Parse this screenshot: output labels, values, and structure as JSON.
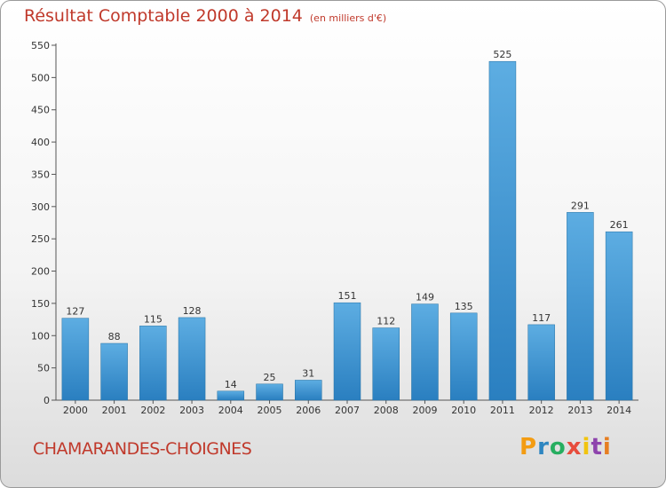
{
  "title": "Résultat Comptable 2000 à 2014",
  "unit": "(en milliers d'€)",
  "commune": "CHAMARANDES-CHOIGNES",
  "logo": {
    "text": "Proxiti",
    "letters": [
      "P",
      "r",
      "o",
      "x",
      "i",
      "t",
      "i"
    ],
    "colors": [
      "#f39c12",
      "#2e86c1",
      "#27ae60",
      "#e74c3c",
      "#f1c40f",
      "#8e44ad",
      "#e67e22"
    ]
  },
  "colors": {
    "title": "#c0392b",
    "bar_light": "#5dade2",
    "bar_dark": "#2a7fc0"
  },
  "chart_data": {
    "type": "bar",
    "categories": [
      "2000",
      "2001",
      "2002",
      "2003",
      "2004",
      "2005",
      "2006",
      "2007",
      "2008",
      "2009",
      "2010",
      "2011",
      "2012",
      "2013",
      "2014"
    ],
    "values": [
      127,
      88,
      115,
      128,
      14,
      25,
      31,
      151,
      112,
      149,
      135,
      525,
      117,
      291,
      261
    ],
    "ylim": [
      0,
      550
    ],
    "yticks": [
      0,
      50,
      100,
      150,
      200,
      250,
      300,
      350,
      400,
      450,
      500,
      550
    ],
    "grid": false
  }
}
